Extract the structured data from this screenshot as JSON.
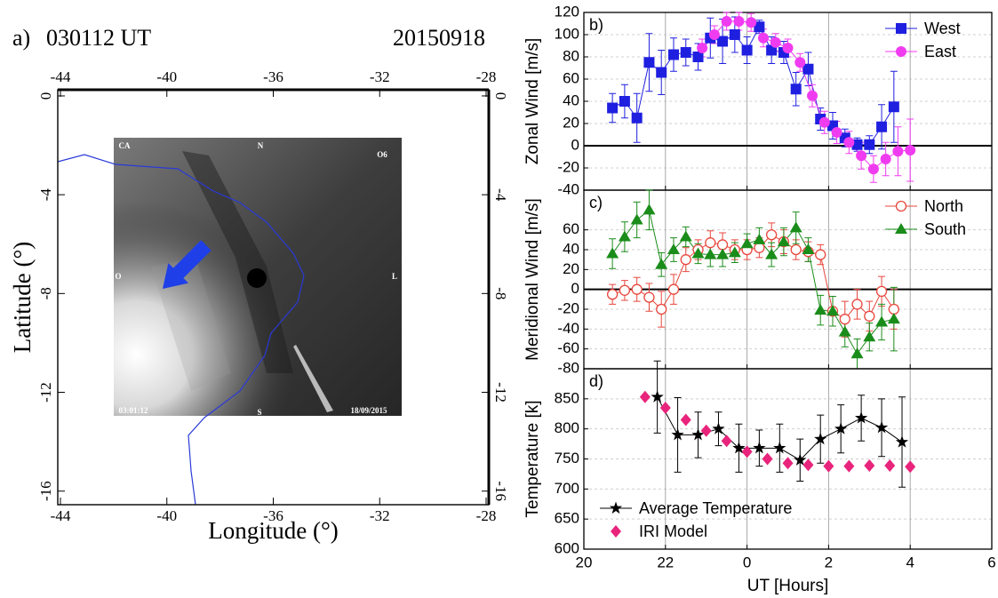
{
  "chart_data": [
    {
      "type": "image",
      "panel": "a)",
      "title": "030112 UT",
      "date": "20150918",
      "xlabel": "Longitude (°)",
      "ylabel": "Latitude (°)",
      "xlim": [
        -44.1,
        -27.9
      ],
      "ylim": [
        -16.55,
        0.25
      ],
      "xticks": [
        -44,
        -40,
        -36,
        -32,
        -28
      ],
      "yticks": [
        0,
        -4,
        -8,
        -12,
        -16
      ],
      "image_labels": [
        "CA",
        "N",
        "O6",
        "O",
        "L",
        "S",
        "03:01:12",
        "18/09/2015"
      ]
    },
    {
      "type": "errorbar",
      "panel": "b)",
      "ylabel": "Zonal Wind [m/s]",
      "xlim": [
        20,
        30
      ],
      "xticks": [
        20,
        22,
        24,
        26,
        28,
        30
      ],
      "ylim": [
        -40,
        120
      ],
      "yticks": [
        -40,
        -20,
        0,
        20,
        40,
        60,
        80,
        100,
        120
      ],
      "grid": true,
      "zero_line": true,
      "legend": "upper right",
      "series": [
        {
          "name": "West",
          "color": "#1f1fe0",
          "marker": "square",
          "line": true,
          "x": [
            20.7,
            21.0,
            21.3,
            21.6,
            21.9,
            22.2,
            22.5,
            22.8,
            23.1,
            23.4,
            23.7,
            24.0,
            24.3,
            24.6,
            24.9,
            25.2,
            25.5,
            25.8,
            26.1,
            26.4,
            26.7,
            27.0,
            27.3,
            27.6
          ],
          "values": [
            34,
            40,
            25,
            75,
            66,
            82,
            84,
            80,
            97,
            94,
            100,
            86,
            107,
            86,
            84,
            51,
            69,
            24,
            18,
            7,
            1,
            1,
            17,
            35
          ],
          "errors": [
            13,
            15,
            22,
            26,
            20,
            15,
            12,
            12,
            18,
            20,
            16,
            12,
            6,
            12,
            10,
            15,
            15,
            10,
            12,
            8,
            6,
            8,
            20,
            32
          ]
        },
        {
          "name": "East",
          "color": "#f03cf0",
          "marker": "circle",
          "line": true,
          "x": [
            22.9,
            23.2,
            23.5,
            23.8,
            24.1,
            24.4,
            24.7,
            25.0,
            25.3,
            25.6,
            25.9,
            26.2,
            26.5,
            26.8,
            27.1,
            27.4,
            27.7,
            28.0
          ],
          "values": [
            88,
            100,
            112,
            112,
            111,
            97,
            93,
            88,
            75,
            45,
            21,
            12,
            3,
            -9,
            -21,
            -12,
            -5,
            -4
          ],
          "errors": [
            8,
            8,
            8,
            8,
            8,
            8,
            8,
            8,
            8,
            10,
            10,
            10,
            10,
            12,
            12,
            15,
            22,
            28
          ]
        }
      ]
    },
    {
      "type": "errorbar",
      "panel": "c)",
      "ylabel": "Meridional Wind [m/s]",
      "xlim": [
        20,
        30
      ],
      "xticks": [
        20,
        22,
        24,
        26,
        28,
        30
      ],
      "ylim": [
        -80,
        100
      ],
      "yticks": [
        -80,
        -60,
        -40,
        -20,
        0,
        20,
        40,
        60
      ],
      "grid": true,
      "zero_line": true,
      "legend": "upper right",
      "series": [
        {
          "name": "North",
          "color": "#e8463c",
          "marker": "open-circle",
          "line": true,
          "x": [
            20.7,
            21.0,
            21.3,
            21.6,
            21.9,
            22.2,
            22.5,
            22.8,
            23.1,
            23.4,
            23.7,
            24.0,
            24.3,
            24.6,
            24.9,
            25.2,
            25.5,
            25.8,
            26.1,
            26.4,
            26.7,
            27.0,
            27.3,
            27.6
          ],
          "values": [
            -5,
            -1,
            0,
            -8,
            -20,
            0,
            30,
            40,
            47,
            45,
            40,
            40,
            42,
            55,
            48,
            40,
            38,
            35,
            -22,
            -30,
            -15,
            -27,
            -2,
            -20
          ],
          "errors": [
            10,
            10,
            12,
            14,
            18,
            15,
            12,
            10,
            12,
            12,
            10,
            10,
            10,
            12,
            12,
            10,
            10,
            10,
            15,
            18,
            15,
            15,
            15,
            20
          ]
        },
        {
          "name": "South",
          "color": "#1a8c1a",
          "marker": "triangle",
          "line": true,
          "x": [
            20.7,
            21.0,
            21.3,
            21.6,
            21.9,
            22.2,
            22.5,
            22.8,
            23.1,
            23.4,
            23.7,
            24.0,
            24.3,
            24.6,
            24.9,
            25.2,
            25.5,
            25.8,
            26.1,
            26.4,
            26.7,
            27.0,
            27.3,
            27.6
          ],
          "values": [
            36,
            53,
            70,
            80,
            25,
            40,
            53,
            36,
            35,
            35,
            37,
            46,
            50,
            35,
            48,
            62,
            40,
            -21,
            -22,
            -43,
            -65,
            -48,
            -33,
            -30
          ],
          "errors": [
            15,
            15,
            18,
            20,
            12,
            12,
            10,
            10,
            12,
            12,
            10,
            10,
            12,
            12,
            14,
            16,
            12,
            15,
            15,
            15,
            15,
            14,
            18,
            32
          ]
        }
      ]
    },
    {
      "type": "errorbar",
      "panel": "d)",
      "ylabel": "Temperature [k]",
      "xlabel": "UT [Hours]",
      "xlim": [
        20,
        30
      ],
      "xticks": [
        20,
        22,
        {
          "value": 24,
          "label": "0"
        },
        {
          "value": 26,
          "label": "2"
        },
        {
          "value": 28,
          "label": "4"
        },
        {
          "value": 30,
          "label": "6"
        }
      ],
      "ylim": [
        600,
        900
      ],
      "yticks": [
        600,
        650,
        700,
        750,
        800,
        850
      ],
      "grid": true,
      "zero_line": false,
      "legend": "lower left",
      "series": [
        {
          "name": "Average Temperature",
          "color": "#000000",
          "marker": "star",
          "line": true,
          "x": [
            21.8,
            22.3,
            22.8,
            23.3,
            23.8,
            24.3,
            24.8,
            25.3,
            25.8,
            26.3,
            26.8,
            27.3,
            27.8
          ],
          "values": [
            853,
            790,
            790,
            800,
            768,
            768,
            768,
            748,
            783,
            800,
            818,
            802,
            778
          ],
          "errors": [
            60,
            62,
            38,
            28,
            40,
            30,
            40,
            35,
            40,
            40,
            38,
            48,
            75
          ]
        },
        {
          "name": "IRI Model",
          "color": "#e8247c",
          "marker": "diamond",
          "line": false,
          "x": [
            21.5,
            22.0,
            22.5,
            23.0,
            23.5,
            24.0,
            24.5,
            25.0,
            25.5,
            26.0,
            26.5,
            27.0,
            27.5,
            28.0
          ],
          "values": [
            853,
            835,
            815,
            797,
            780,
            762,
            750,
            743,
            740,
            738,
            738,
            739,
            739,
            737
          ]
        }
      ]
    }
  ]
}
